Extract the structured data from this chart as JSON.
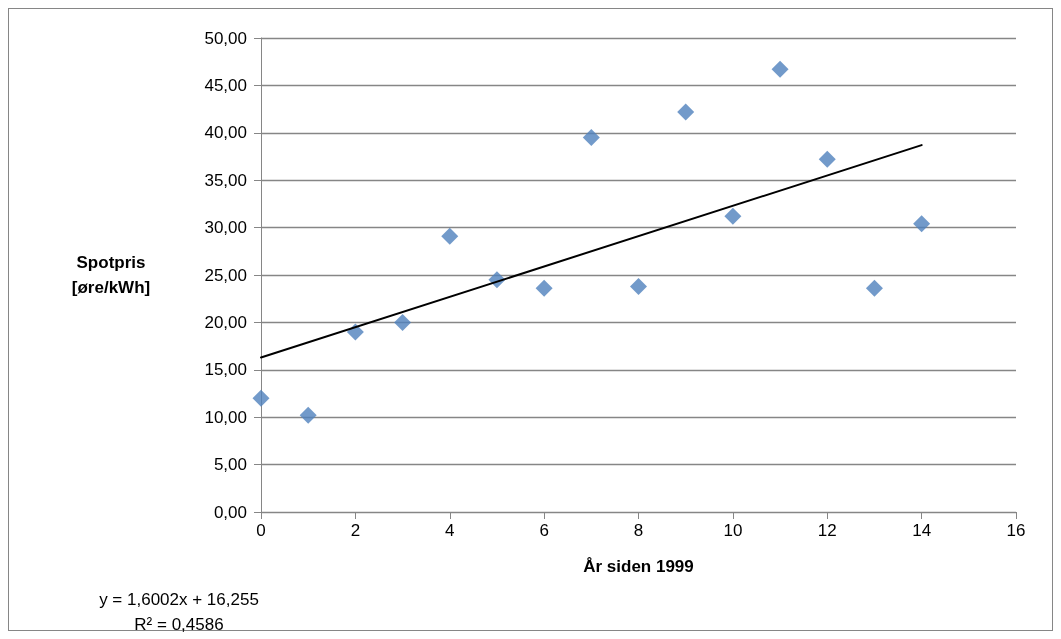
{
  "chart_data": {
    "type": "scatter",
    "xlabel": "År siden 1999",
    "ylabel": "Spotpris\n[øre/kWh]",
    "x": [
      0,
      1,
      2,
      3,
      4,
      5,
      6,
      7,
      8,
      9,
      10,
      11,
      12,
      13,
      14
    ],
    "series": [
      {
        "color": "#4f81bd",
        "marker": "diamond",
        "values": [
          12.0,
          10.2,
          19.0,
          20.0,
          29.1,
          24.5,
          23.6,
          39.5,
          23.8,
          42.2,
          31.2,
          46.7,
          37.2,
          23.6,
          30.4
        ]
      },
      {
        "type": "line",
        "color": "#000000",
        "marker": "none",
        "line_style": "solid",
        "x": [
          0,
          14
        ],
        "values": [
          16.3,
          38.7
        ]
      }
    ],
    "xlim": [
      0,
      16
    ],
    "xticks": [
      0,
      2,
      4,
      6,
      8,
      10,
      12,
      14,
      16
    ],
    "ylim": [
      0,
      50
    ],
    "yticks": [
      {
        "value": 0,
        "label": "0,00"
      },
      {
        "value": 5,
        "label": "5,00"
      },
      {
        "value": 10,
        "label": "10,00"
      },
      {
        "value": 15,
        "label": "15,00"
      },
      {
        "value": 20,
        "label": "20,00"
      },
      {
        "value": 25,
        "label": "25,00"
      },
      {
        "value": 30,
        "label": "30,00"
      },
      {
        "value": 35,
        "label": "35,00"
      },
      {
        "value": 40,
        "label": "40,00"
      },
      {
        "value": 45,
        "label": "45,00"
      },
      {
        "value": 50,
        "label": "50,00"
      }
    ],
    "grid": "y",
    "legend": false,
    "annotations": [
      "y = 1,6002x + 16,255",
      "R² = 0,4586"
    ]
  }
}
